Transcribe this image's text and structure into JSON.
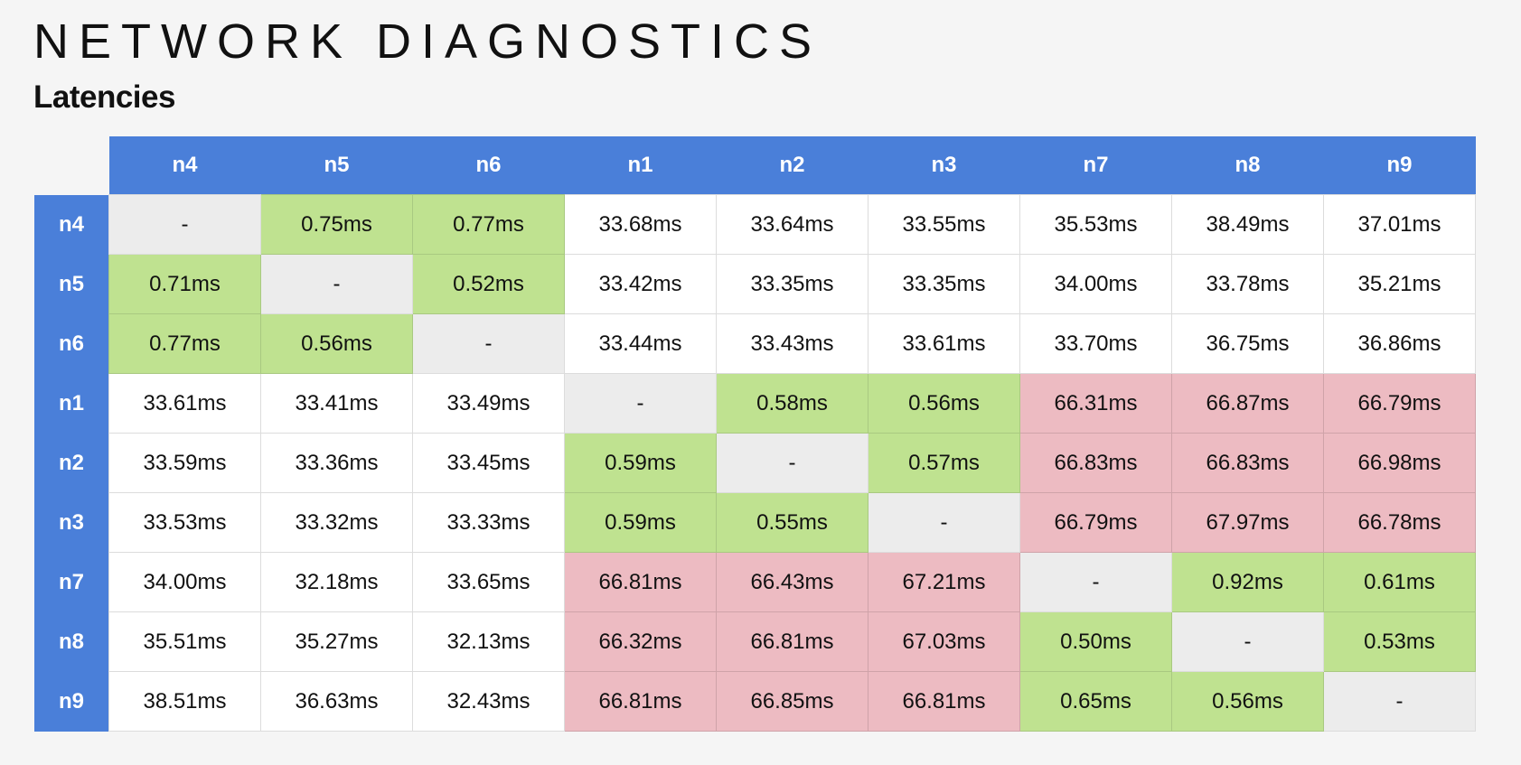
{
  "header": {
    "title": "NETWORK DIAGNOSTICS",
    "subtitle": "Latencies"
  },
  "colors": {
    "header_blue": "#4a7fd9",
    "low_latency_green": "#bfe290",
    "high_latency_red": "#edbbc2",
    "self_gray": "#ececec"
  },
  "table": {
    "columns": [
      "n4",
      "n5",
      "n6",
      "n1",
      "n2",
      "n3",
      "n7",
      "n8",
      "n9"
    ],
    "rows": [
      {
        "label": "n4",
        "cells": [
          {
            "v": "-",
            "s": "self"
          },
          {
            "v": "0.75ms",
            "s": "good"
          },
          {
            "v": "0.77ms",
            "s": "good"
          },
          {
            "v": "33.68ms",
            "s": "normal"
          },
          {
            "v": "33.64ms",
            "s": "normal"
          },
          {
            "v": "33.55ms",
            "s": "normal"
          },
          {
            "v": "35.53ms",
            "s": "normal"
          },
          {
            "v": "38.49ms",
            "s": "normal"
          },
          {
            "v": "37.01ms",
            "s": "normal"
          }
        ]
      },
      {
        "label": "n5",
        "cells": [
          {
            "v": "0.71ms",
            "s": "good"
          },
          {
            "v": "-",
            "s": "self"
          },
          {
            "v": "0.52ms",
            "s": "good"
          },
          {
            "v": "33.42ms",
            "s": "normal"
          },
          {
            "v": "33.35ms",
            "s": "normal"
          },
          {
            "v": "33.35ms",
            "s": "normal"
          },
          {
            "v": "34.00ms",
            "s": "normal"
          },
          {
            "v": "33.78ms",
            "s": "normal"
          },
          {
            "v": "35.21ms",
            "s": "normal"
          }
        ]
      },
      {
        "label": "n6",
        "cells": [
          {
            "v": "0.77ms",
            "s": "good"
          },
          {
            "v": "0.56ms",
            "s": "good"
          },
          {
            "v": "-",
            "s": "self"
          },
          {
            "v": "33.44ms",
            "s": "normal"
          },
          {
            "v": "33.43ms",
            "s": "normal"
          },
          {
            "v": "33.61ms",
            "s": "normal"
          },
          {
            "v": "33.70ms",
            "s": "normal"
          },
          {
            "v": "36.75ms",
            "s": "normal"
          },
          {
            "v": "36.86ms",
            "s": "normal"
          }
        ]
      },
      {
        "label": "n1",
        "cells": [
          {
            "v": "33.61ms",
            "s": "normal"
          },
          {
            "v": "33.41ms",
            "s": "normal"
          },
          {
            "v": "33.49ms",
            "s": "normal"
          },
          {
            "v": "-",
            "s": "self"
          },
          {
            "v": "0.58ms",
            "s": "good"
          },
          {
            "v": "0.56ms",
            "s": "good"
          },
          {
            "v": "66.31ms",
            "s": "bad"
          },
          {
            "v": "66.87ms",
            "s": "bad"
          },
          {
            "v": "66.79ms",
            "s": "bad"
          }
        ]
      },
      {
        "label": "n2",
        "cells": [
          {
            "v": "33.59ms",
            "s": "normal"
          },
          {
            "v": "33.36ms",
            "s": "normal"
          },
          {
            "v": "33.45ms",
            "s": "normal"
          },
          {
            "v": "0.59ms",
            "s": "good"
          },
          {
            "v": "-",
            "s": "self"
          },
          {
            "v": "0.57ms",
            "s": "good"
          },
          {
            "v": "66.83ms",
            "s": "bad"
          },
          {
            "v": "66.83ms",
            "s": "bad"
          },
          {
            "v": "66.98ms",
            "s": "bad"
          }
        ]
      },
      {
        "label": "n3",
        "cells": [
          {
            "v": "33.53ms",
            "s": "normal"
          },
          {
            "v": "33.32ms",
            "s": "normal"
          },
          {
            "v": "33.33ms",
            "s": "normal"
          },
          {
            "v": "0.59ms",
            "s": "good"
          },
          {
            "v": "0.55ms",
            "s": "good"
          },
          {
            "v": "-",
            "s": "self"
          },
          {
            "v": "66.79ms",
            "s": "bad"
          },
          {
            "v": "67.97ms",
            "s": "bad"
          },
          {
            "v": "66.78ms",
            "s": "bad"
          }
        ]
      },
      {
        "label": "n7",
        "cells": [
          {
            "v": "34.00ms",
            "s": "normal"
          },
          {
            "v": "32.18ms",
            "s": "normal"
          },
          {
            "v": "33.65ms",
            "s": "normal"
          },
          {
            "v": "66.81ms",
            "s": "bad"
          },
          {
            "v": "66.43ms",
            "s": "bad"
          },
          {
            "v": "67.21ms",
            "s": "bad"
          },
          {
            "v": "-",
            "s": "self"
          },
          {
            "v": "0.92ms",
            "s": "good"
          },
          {
            "v": "0.61ms",
            "s": "good"
          }
        ]
      },
      {
        "label": "n8",
        "cells": [
          {
            "v": "35.51ms",
            "s": "normal"
          },
          {
            "v": "35.27ms",
            "s": "normal"
          },
          {
            "v": "32.13ms",
            "s": "normal"
          },
          {
            "v": "66.32ms",
            "s": "bad"
          },
          {
            "v": "66.81ms",
            "s": "bad"
          },
          {
            "v": "67.03ms",
            "s": "bad"
          },
          {
            "v": "0.50ms",
            "s": "good"
          },
          {
            "v": "-",
            "s": "self"
          },
          {
            "v": "0.53ms",
            "s": "good"
          }
        ]
      },
      {
        "label": "n9",
        "cells": [
          {
            "v": "38.51ms",
            "s": "normal"
          },
          {
            "v": "36.63ms",
            "s": "normal"
          },
          {
            "v": "32.43ms",
            "s": "normal"
          },
          {
            "v": "66.81ms",
            "s": "bad"
          },
          {
            "v": "66.85ms",
            "s": "bad"
          },
          {
            "v": "66.81ms",
            "s": "bad"
          },
          {
            "v": "0.65ms",
            "s": "good"
          },
          {
            "v": "0.56ms",
            "s": "good"
          },
          {
            "v": "-",
            "s": "self"
          }
        ]
      }
    ]
  }
}
